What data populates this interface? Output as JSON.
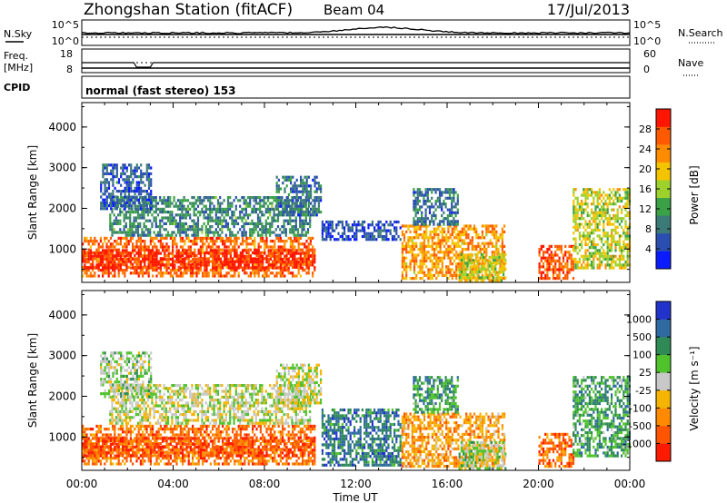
{
  "header": {
    "station": "Zhongshan Station (fitACF)",
    "beam": "Beam 04",
    "date": "17/Jul/2013"
  },
  "panels": {
    "nsky": {
      "left_label": "N.Sky",
      "right_label": "N.Search",
      "top_tick": "10^5",
      "bottom_tick": "10^0"
    },
    "freq": {
      "left_label_1": "Freq.",
      "left_label_2": "[MHz]",
      "left_top_tick": "18",
      "left_bottom_tick": "8",
      "right_label": "Nave",
      "right_top_tick": "60",
      "right_bottom_tick": "0"
    },
    "cpid": {
      "label": "CPID",
      "text": "normal (fast stereo) 153"
    }
  },
  "chart_data": [
    {
      "type": "heatmap",
      "name": "power",
      "xlabel": "",
      "ylabel": "Slant Range [km]",
      "yticks": [
        "1000",
        "2000",
        "3000",
        "4000"
      ],
      "ylim": [
        180,
        4600
      ],
      "xlim_hours": [
        0,
        24
      ],
      "colorbar": {
        "label": "Power [dB]",
        "ticks": [
          "4",
          "8",
          "12",
          "16",
          "20",
          "24",
          "28"
        ],
        "colors": [
          "#0a1cff",
          "#2a4fb0",
          "#3c7a78",
          "#3aa146",
          "#9dd12c",
          "#f5c400",
          "#ff8c00",
          "#ff5a00",
          "#ff1500"
        ]
      },
      "regions": [
        {
          "t0": 0.0,
          "t1": 10.2,
          "r0": 300,
          "r1": 1300,
          "level": 0.8
        },
        {
          "t0": 0.0,
          "t1": 10.2,
          "r0": 500,
          "r1": 1000,
          "level": 0.95
        },
        {
          "t0": 1.2,
          "t1": 10.0,
          "r0": 1300,
          "r1": 2300,
          "level": 0.3
        },
        {
          "t0": 0.8,
          "t1": 3.0,
          "r0": 2000,
          "r1": 3100,
          "level": 0.2
        },
        {
          "t0": 8.5,
          "t1": 10.5,
          "r0": 1800,
          "r1": 2800,
          "level": 0.25
        },
        {
          "t0": 10.5,
          "t1": 14.0,
          "r0": 1200,
          "r1": 1700,
          "level": 0.15
        },
        {
          "t0": 14.0,
          "t1": 18.5,
          "r0": 300,
          "r1": 1600,
          "level": 0.7
        },
        {
          "t0": 14.5,
          "t1": 16.5,
          "r0": 1600,
          "r1": 2500,
          "level": 0.25
        },
        {
          "t0": 16.5,
          "t1": 18.6,
          "r0": 200,
          "r1": 900,
          "level": 0.55
        },
        {
          "t0": 20.0,
          "t1": 21.5,
          "r0": 300,
          "r1": 1100,
          "level": 0.85
        },
        {
          "t0": 21.5,
          "t1": 24.0,
          "r0": 500,
          "r1": 2500,
          "level": 0.55
        }
      ]
    },
    {
      "type": "heatmap",
      "name": "velocity",
      "xlabel": "Time UT",
      "ylabel": "Slant Range [km]",
      "yticks": [
        "1000",
        "2000",
        "3000",
        "4000"
      ],
      "ylim": [
        180,
        4600
      ],
      "xticks": [
        "00:00",
        "04:00",
        "08:00",
        "12:00",
        "16:00",
        "20:00",
        "00:00"
      ],
      "xlim_hours": [
        0,
        24
      ],
      "colorbar": {
        "label": "Velocity [m s⁻¹]",
        "ticks": [
          "-1000",
          "-500",
          "-100",
          "-25",
          "25",
          "100",
          "500",
          "1000"
        ],
        "colors": [
          "#ff1a00",
          "#ff5500",
          "#ff8a00",
          "#f5b400",
          "#c8c8c8",
          "#4fc22c",
          "#2f8a56",
          "#2f6ba0",
          "#2233cc"
        ]
      },
      "regions": [
        {
          "t0": 0.0,
          "t1": 10.2,
          "r0": 300,
          "r1": 1300,
          "level": 0.22
        },
        {
          "t0": 0.0,
          "t1": 10.2,
          "r0": 500,
          "r1": 1000,
          "level": 0.15
        },
        {
          "t0": 1.2,
          "t1": 10.0,
          "r0": 1300,
          "r1": 2300,
          "level": 0.5
        },
        {
          "t0": 0.8,
          "t1": 3.0,
          "r0": 2000,
          "r1": 3100,
          "level": 0.55
        },
        {
          "t0": 8.5,
          "t1": 10.5,
          "r0": 1800,
          "r1": 2800,
          "level": 0.5
        },
        {
          "t0": 10.5,
          "t1": 14.0,
          "r0": 300,
          "r1": 1700,
          "level": 0.78
        },
        {
          "t0": 14.0,
          "t1": 18.5,
          "r0": 300,
          "r1": 1600,
          "level": 0.32
        },
        {
          "t0": 14.5,
          "t1": 16.5,
          "r0": 1600,
          "r1": 2500,
          "level": 0.7
        },
        {
          "t0": 16.5,
          "t1": 18.6,
          "r0": 200,
          "r1": 900,
          "level": 0.55
        },
        {
          "t0": 20.0,
          "t1": 21.5,
          "r0": 300,
          "r1": 1100,
          "level": 0.2
        },
        {
          "t0": 21.5,
          "t1": 24.0,
          "r0": 500,
          "r1": 2500,
          "level": 0.68
        }
      ]
    }
  ]
}
